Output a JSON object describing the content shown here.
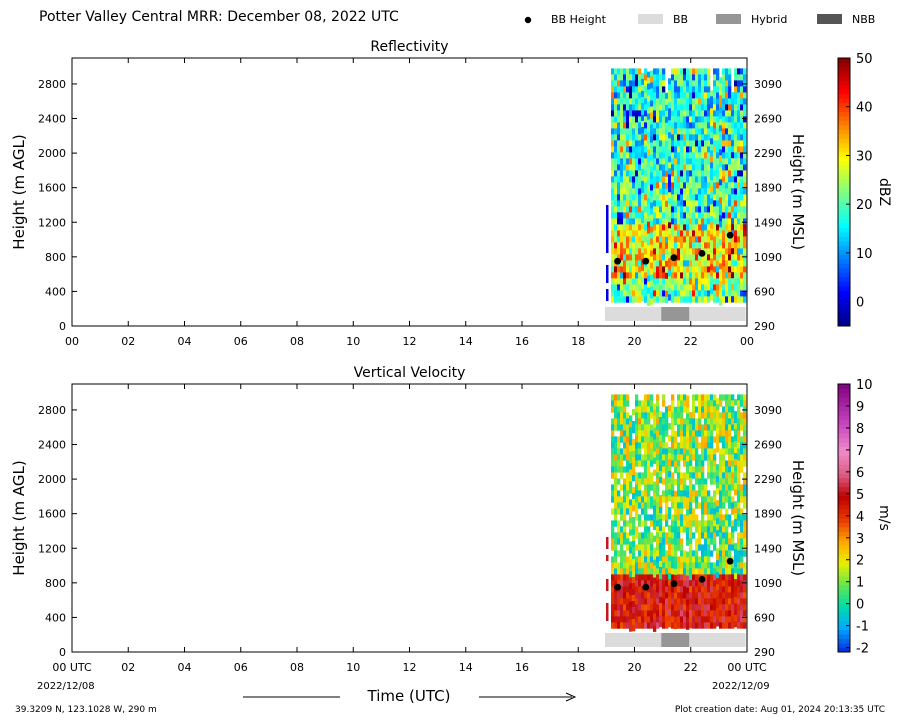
{
  "header": {
    "title": "Potter Valley Central MRR:  December 08, 2022 UTC",
    "legend": [
      {
        "label": "BB Height",
        "kind": "dot",
        "color": "#000000"
      },
      {
        "label": "BB",
        "kind": "box",
        "color": "#dcdcdc"
      },
      {
        "label": "Hybrid",
        "kind": "box",
        "color": "#969696"
      },
      {
        "label": "NBB",
        "kind": "box",
        "color": "#555555"
      }
    ]
  },
  "chart_data": [
    {
      "type": "heatmap",
      "title": "Reflectivity",
      "ylabel": "Height (m AGL)",
      "y2label": "Height (m MSL)",
      "ylim": [
        0,
        3100
      ],
      "yticks": [
        "0",
        "400",
        "800",
        "1200",
        "1600",
        "2000",
        "2400",
        "2800"
      ],
      "y2ticks": [
        "290",
        "690",
        "1090",
        "1490",
        "1890",
        "2290",
        "2690",
        "3090"
      ],
      "xticks": [
        "00",
        "02",
        "04",
        "06",
        "08",
        "10",
        "12",
        "14",
        "16",
        "18",
        "20",
        "22",
        "00"
      ],
      "colorbar": {
        "label": "dBZ",
        "min": -5,
        "max": 50,
        "ticks": [
          "0",
          "10",
          "20",
          "30",
          "40",
          "50"
        ],
        "tick_values": [
          0,
          10,
          20,
          30,
          40,
          50
        ],
        "cmap": "jet"
      },
      "bb_height": {
        "x": [
          19.4,
          20.4,
          21.4,
          22.4,
          23.4
        ],
        "y": [
          750,
          750,
          790,
          840,
          1050
        ]
      },
      "bb_class_bar": [
        {
          "start": 18.95,
          "end": 20.95,
          "class": "BB"
        },
        {
          "start": 20.95,
          "end": 21.95,
          "class": "Hybrid"
        },
        {
          "start": 21.95,
          "end": 23.95,
          "class": "BB"
        }
      ],
      "data_span": [
        18.95,
        23.95
      ]
    },
    {
      "type": "heatmap",
      "title": "Vertical Velocity",
      "ylabel": "Height (m AGL)",
      "y2label": "Height (m MSL)",
      "ylim": [
        0,
        3100
      ],
      "yticks": [
        "0",
        "400",
        "800",
        "1200",
        "1600",
        "2000",
        "2400",
        "2800"
      ],
      "y2ticks": [
        "290",
        "690",
        "1090",
        "1490",
        "1890",
        "2290",
        "2690",
        "3090"
      ],
      "xticks": [
        "00 UTC",
        "02",
        "04",
        "06",
        "08",
        "10",
        "12",
        "14",
        "16",
        "18",
        "20",
        "22",
        "00 UTC"
      ],
      "colorbar": {
        "label": "m/s",
        "min": -2.2,
        "max": 10,
        "ticks": [
          "-2",
          "-1",
          "0",
          "1",
          "2",
          "3",
          "4",
          "5",
          "6",
          "7",
          "8",
          "9",
          "10"
        ],
        "tick_values": [
          -2,
          -1,
          0,
          1,
          2,
          3,
          4,
          5,
          6,
          7,
          8,
          9,
          10
        ],
        "cmap": "velocity"
      },
      "bb_height": {
        "x": [
          19.4,
          20.4,
          21.4,
          22.4,
          23.4
        ],
        "y": [
          750,
          750,
          790,
          840,
          1050
        ]
      },
      "bb_class_bar": [
        {
          "start": 18.95,
          "end": 20.95,
          "class": "BB"
        },
        {
          "start": 20.95,
          "end": 21.95,
          "class": "Hybrid"
        },
        {
          "start": 21.95,
          "end": 23.95,
          "class": "BB"
        }
      ],
      "data_span": [
        18.95,
        23.95
      ]
    }
  ],
  "xaxis": {
    "label": "Time (UTC)",
    "start_date": "2022/12/08",
    "end_date": "2022/12/09"
  },
  "footer": {
    "location": "39.3209 N, 123.1028 W, 290 m",
    "creation": "Plot creation date: Aug 01, 2024 20:13:35 UTC"
  }
}
